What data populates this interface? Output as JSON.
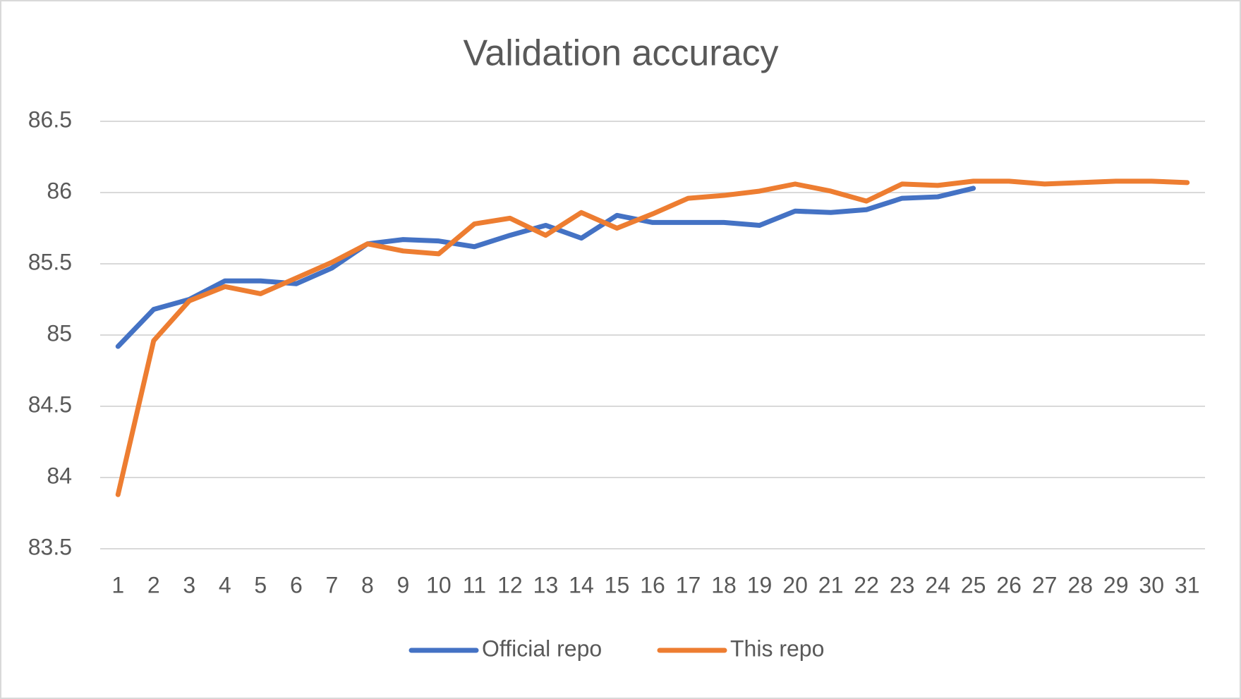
{
  "chart_data": {
    "type": "line",
    "title": "Validation accuracy",
    "categories": [
      "1",
      "2",
      "3",
      "4",
      "5",
      "6",
      "7",
      "8",
      "9",
      "10",
      "11",
      "12",
      "13",
      "14",
      "15",
      "16",
      "17",
      "18",
      "19",
      "20",
      "21",
      "22",
      "23",
      "24",
      "25",
      "26",
      "27",
      "28",
      "29",
      "30",
      "31"
    ],
    "series": [
      {
        "name": "Official repo",
        "color": "#4472c4",
        "values": [
          84.92,
          85.18,
          85.25,
          85.38,
          85.38,
          85.36,
          85.47,
          85.64,
          85.67,
          85.66,
          85.62,
          85.7,
          85.77,
          85.68,
          85.84,
          85.79,
          85.79,
          85.79,
          85.77,
          85.87,
          85.86,
          85.88,
          85.96,
          85.97,
          86.03,
          null,
          null,
          null,
          null,
          null,
          null
        ]
      },
      {
        "name": "This repo",
        "color": "#ed7d31",
        "values": [
          83.88,
          84.96,
          85.24,
          85.34,
          85.29,
          85.4,
          85.51,
          85.64,
          85.59,
          85.57,
          85.78,
          85.82,
          85.7,
          85.86,
          85.75,
          85.85,
          85.96,
          85.98,
          86.01,
          86.06,
          86.01,
          85.94,
          86.06,
          86.05,
          86.08,
          86.08,
          86.06,
          86.07,
          86.08,
          86.08,
          86.07
        ]
      }
    ],
    "ylim": [
      83.5,
      86.5
    ],
    "yticks": [
      83.5,
      84,
      84.5,
      85,
      85.5,
      86,
      86.5
    ],
    "grid": true,
    "legend": "bottom"
  }
}
